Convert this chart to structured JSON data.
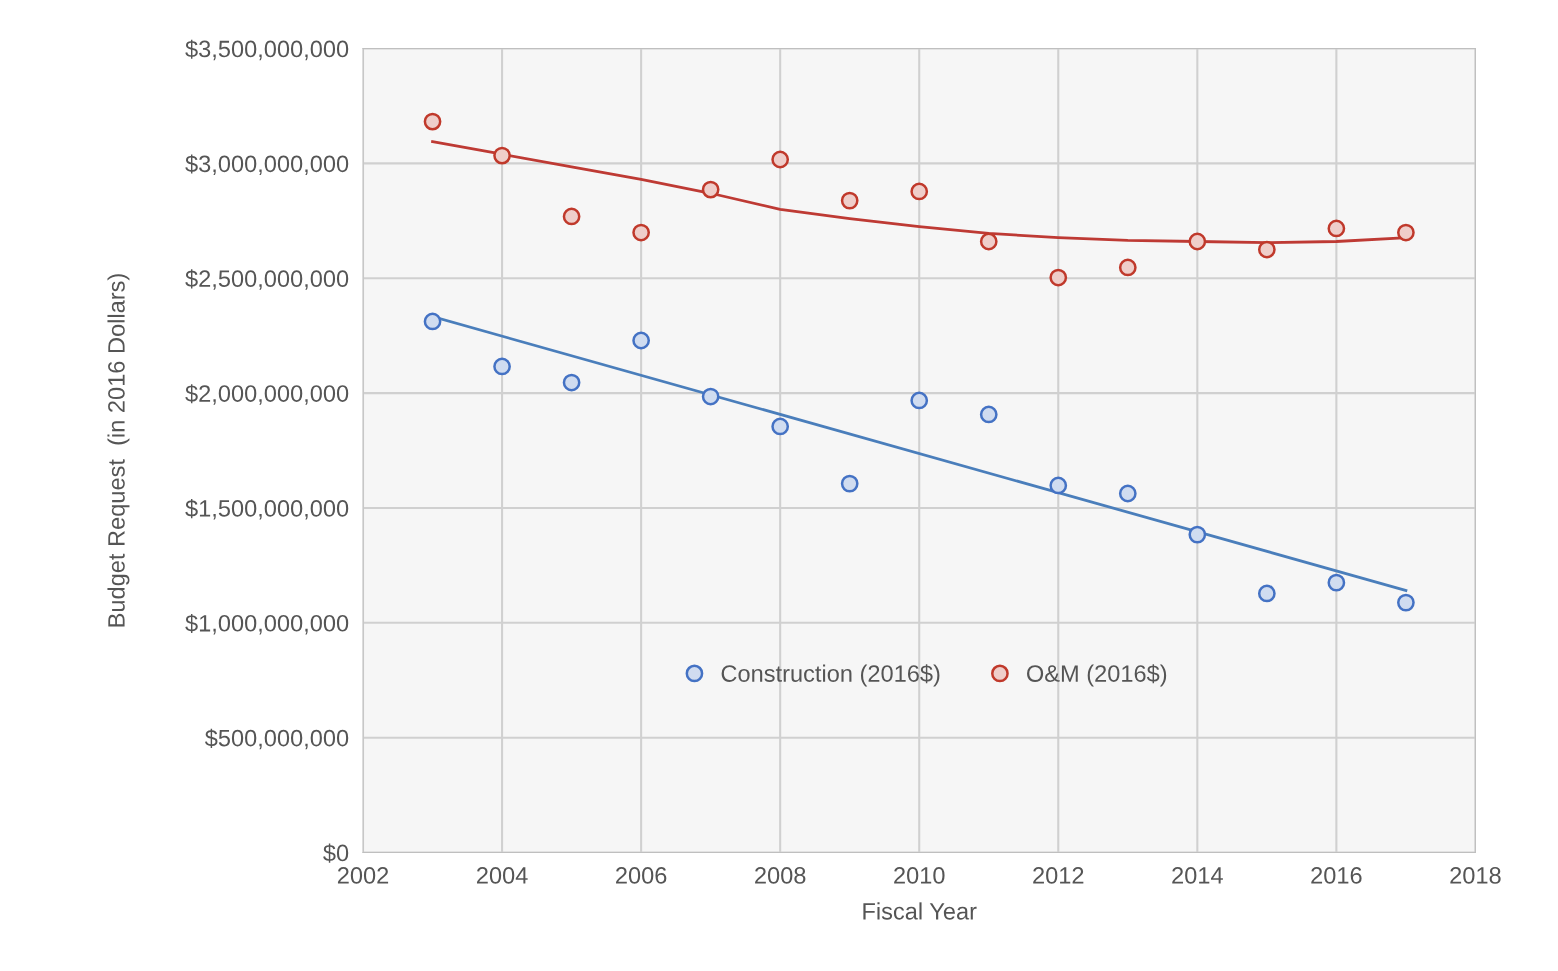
{
  "chart_data": {
    "type": "scatter",
    "xlabel": "Fiscal Year",
    "ylabel": "Budget Request  (in 2016 Dollars)",
    "x": [
      2003,
      2004,
      2005,
      2006,
      2007,
      2008,
      2009,
      2010,
      2011,
      2012,
      2013,
      2014,
      2015,
      2016,
      2017
    ],
    "series": [
      {
        "name": "Construction (2016$)",
        "color": "#4472c4",
        "values": [
          2312000000,
          2116000000,
          2046000000,
          2229000000,
          1985000000,
          1855000000,
          1606000000,
          1968000000,
          1907000000,
          1598000000,
          1563000000,
          1384000000,
          1128000000,
          1175000000,
          1088000000
        ]
      },
      {
        "name": "O&M (2016$)",
        "color": "#c0392b",
        "values": [
          3182000000,
          3034000000,
          2769000000,
          2699000000,
          2886000000,
          3017000000,
          2838000000,
          2878000000,
          2660000000,
          2503000000,
          2547000000,
          2660000000,
          2625000000,
          2717000000,
          2699000000
        ]
      },
      {
        "type": "line",
        "marker": "none",
        "color": "#4a7ebb",
        "x": [
          2003,
          2017
        ],
        "values": [
          2333000000,
          1141000000
        ]
      },
      {
        "type": "line",
        "marker": "none",
        "color": "#be3a34",
        "x": [
          2003,
          2004,
          2005,
          2006,
          2007,
          2008,
          2009,
          2010,
          2011,
          2012,
          2013,
          2014,
          2015,
          2016,
          2017
        ],
        "values": [
          3095000000,
          3040000000,
          2985000000,
          2930000000,
          2870000000,
          2800000000,
          2760000000,
          2725000000,
          2695000000,
          2677000000,
          2665000000,
          2660000000,
          2655000000,
          2660000000,
          2677000000
        ]
      }
    ],
    "xlim": [
      2002,
      2018
    ],
    "xticks": [
      2002,
      2004,
      2006,
      2008,
      2010,
      2012,
      2014,
      2016,
      2018
    ],
    "ylim": [
      0,
      3500000000
    ],
    "yticks": [
      {
        "value": 0,
        "label": "$0"
      },
      {
        "value": 500000000,
        "label": "$500,000,000"
      },
      {
        "value": 1000000000,
        "label": "$1,000,000,000"
      },
      {
        "value": 1500000000,
        "label": "$1,500,000,000"
      },
      {
        "value": 2000000000,
        "label": "$2,000,000,000"
      },
      {
        "value": 2500000000,
        "label": "$2,500,000,000"
      },
      {
        "value": 3000000000,
        "label": "$3,000,000,000"
      },
      {
        "value": 3500000000,
        "label": "$3,500,000,000"
      }
    ],
    "grid": true,
    "legend": "bottom",
    "marker": "circle"
  }
}
